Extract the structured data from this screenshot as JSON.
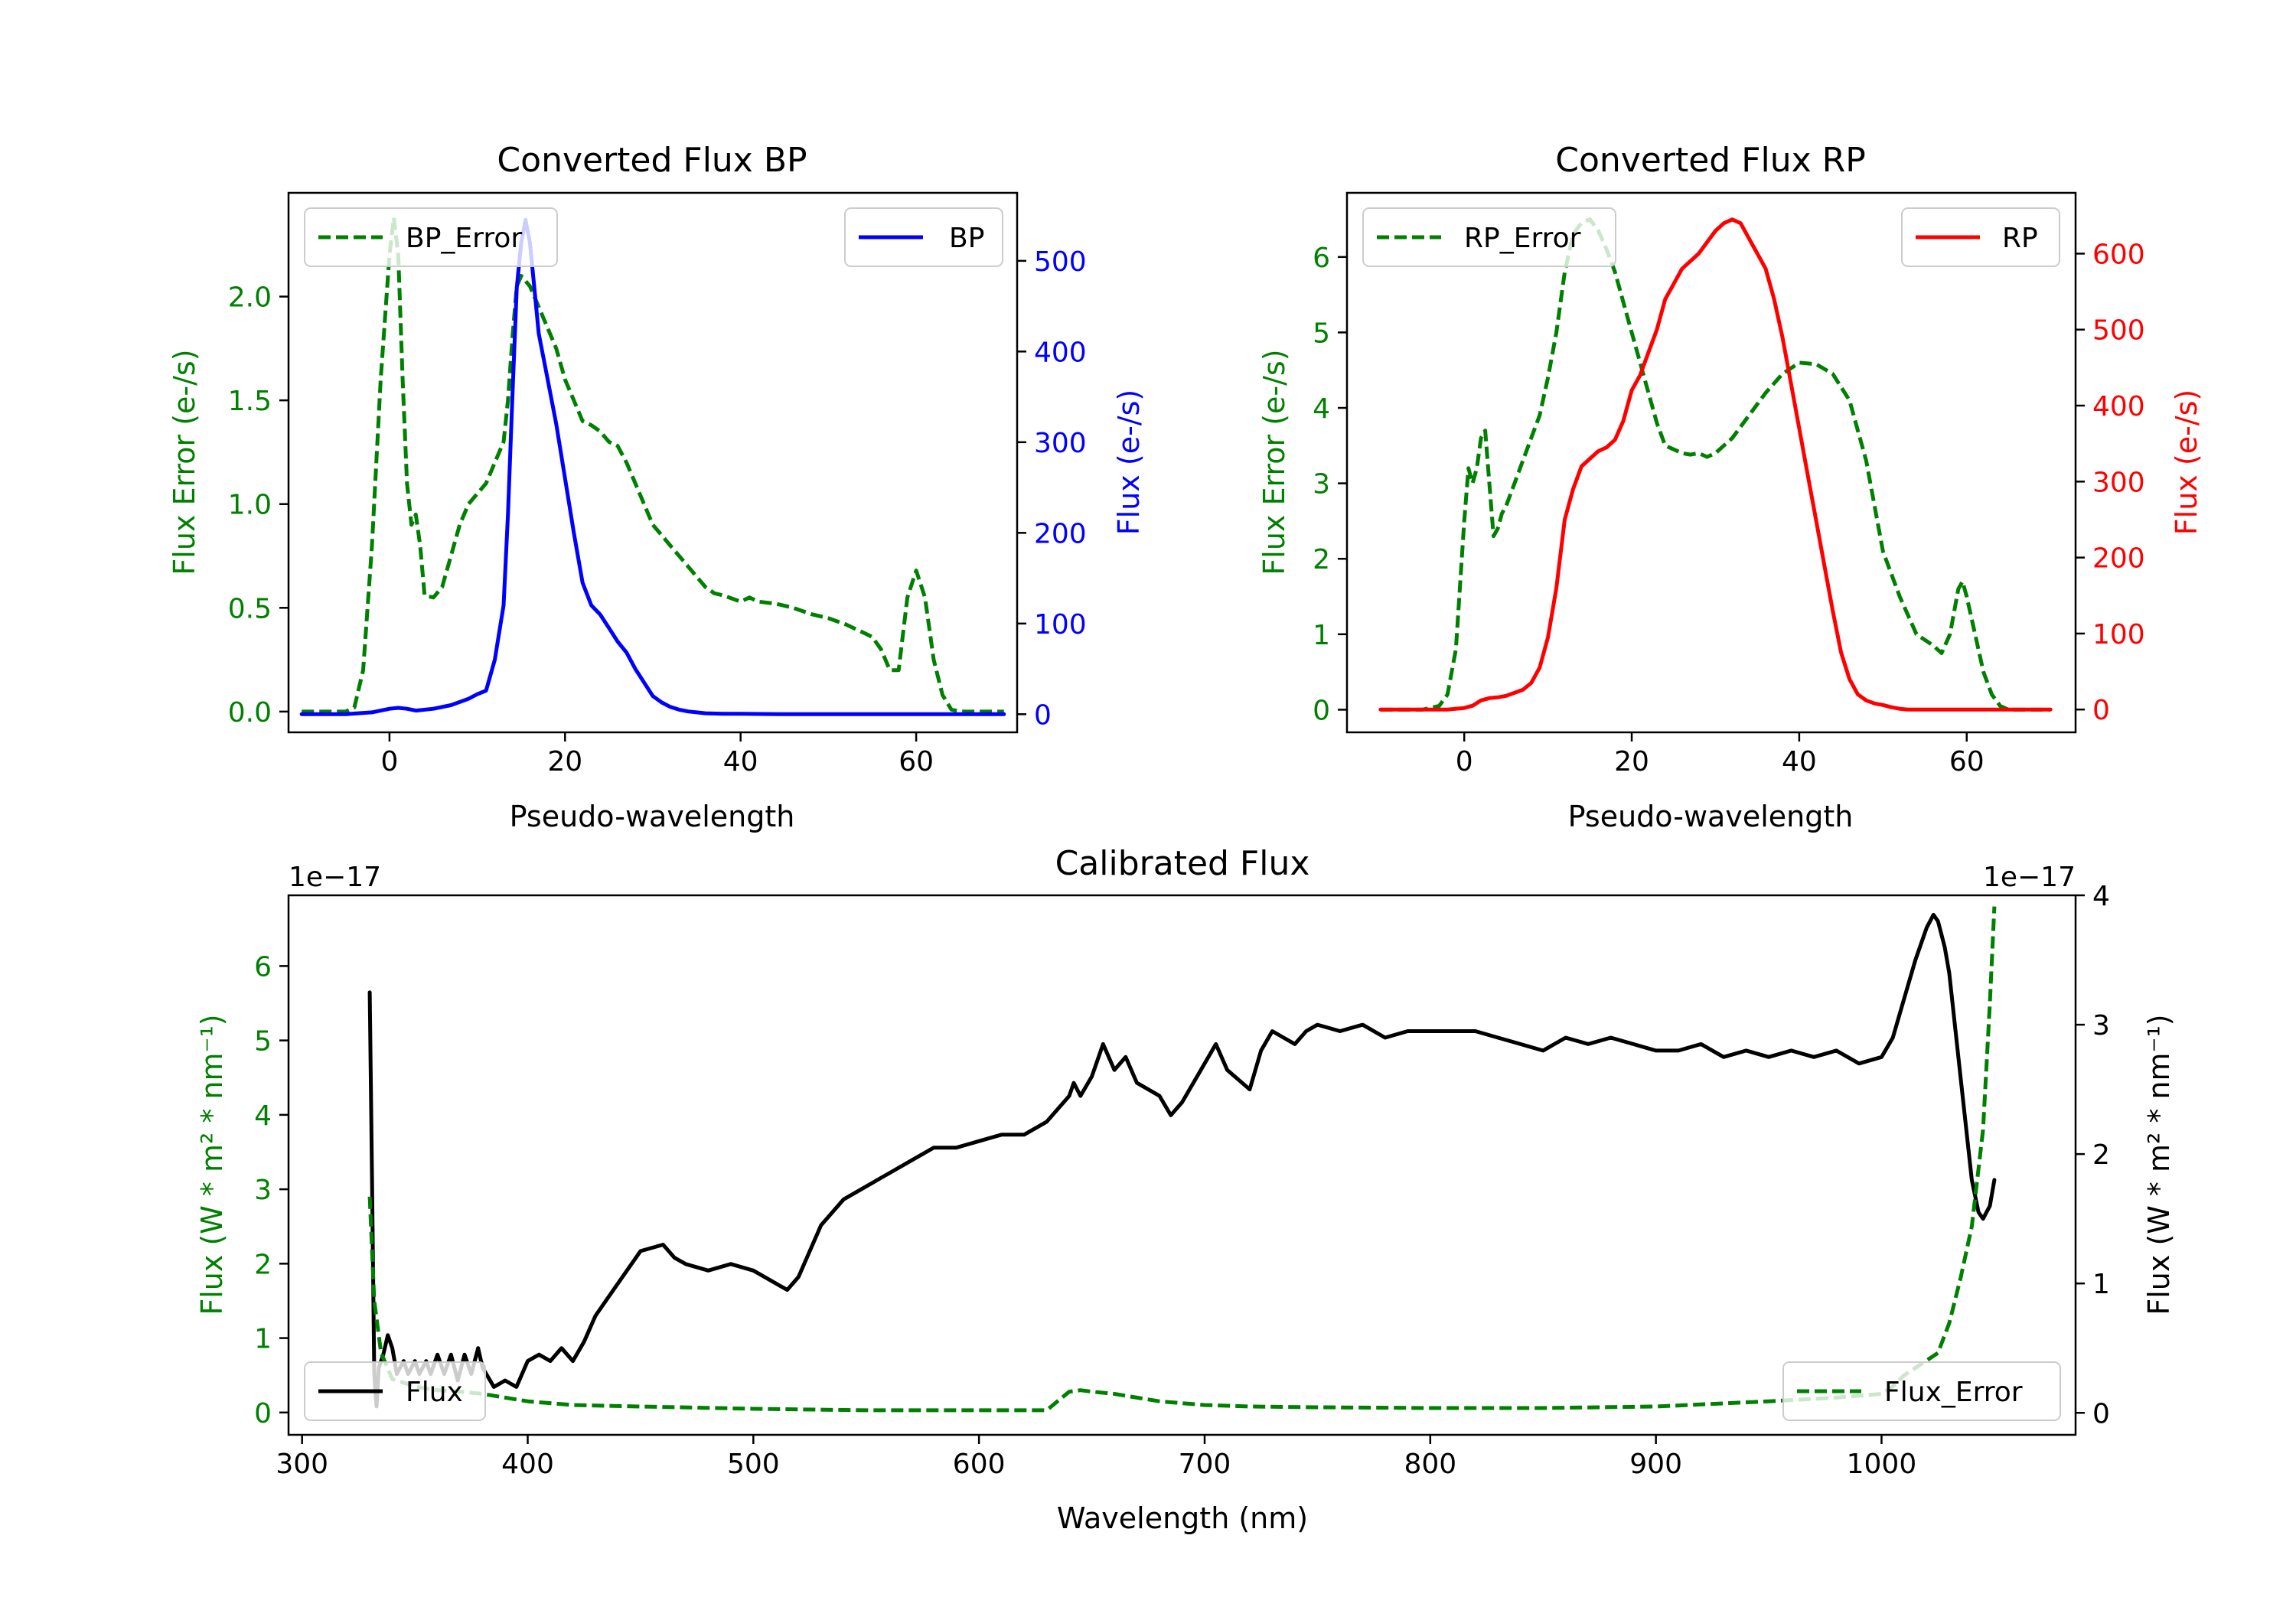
{
  "chart_data": [
    {
      "id": "bp",
      "type": "line",
      "title": "Converted Flux BP",
      "xlabel": "Pseudo-wavelength",
      "ylabel_left": "Flux Error (e-/s)",
      "ylabel_right": "Flux (e-/s)",
      "xlim": [
        -11.5,
        71.5
      ],
      "ylim_left": [
        -0.1,
        2.5
      ],
      "ylim_right": [
        -20,
        575
      ],
      "xticks": [
        "0",
        "20",
        "40",
        "60"
      ],
      "yticks_left": [
        "0.0",
        "0.5",
        "1.0",
        "1.5",
        "2.0"
      ],
      "yticks_right": [
        "0",
        "100",
        "200",
        "300",
        "400",
        "500"
      ],
      "colors": {
        "left": "#008000",
        "right": "#0000ff"
      },
      "series": [
        {
          "name": "BP_Error",
          "axis": "left",
          "style": "dashed",
          "x": [
            -10,
            -5,
            -4,
            -3,
            -2,
            -1,
            0,
            0.5,
            1,
            1.5,
            2,
            2.5,
            3,
            3.5,
            4,
            5,
            6,
            7,
            8,
            9,
            10,
            11,
            12,
            13,
            13.5,
            14,
            14.5,
            15,
            16,
            17,
            18,
            19,
            20,
            21,
            22,
            23,
            24,
            25,
            26,
            27,
            28,
            29,
            30,
            31,
            32,
            33,
            34,
            35,
            36,
            37,
            38,
            40,
            41,
            42,
            44,
            46,
            48,
            50,
            52,
            54,
            55,
            56,
            57,
            58,
            59,
            60,
            61,
            62,
            63,
            64,
            65,
            66,
            67,
            68,
            69,
            70
          ],
          "y": [
            0,
            0,
            0.02,
            0.2,
            0.8,
            1.6,
            2.2,
            2.38,
            2.2,
            1.6,
            1.1,
            0.9,
            0.95,
            0.8,
            0.56,
            0.55,
            0.6,
            0.75,
            0.9,
            1.0,
            1.05,
            1.1,
            1.2,
            1.3,
            1.5,
            1.8,
            2.05,
            2.1,
            2.05,
            1.95,
            1.85,
            1.75,
            1.6,
            1.5,
            1.4,
            1.38,
            1.35,
            1.3,
            1.28,
            1.2,
            1.1,
            1.0,
            0.9,
            0.85,
            0.8,
            0.75,
            0.7,
            0.65,
            0.6,
            0.57,
            0.56,
            0.53,
            0.55,
            0.53,
            0.52,
            0.5,
            0.47,
            0.45,
            0.42,
            0.38,
            0.36,
            0.3,
            0.2,
            0.2,
            0.55,
            0.68,
            0.55,
            0.25,
            0.08,
            0.01,
            0,
            0,
            0,
            0,
            0,
            0
          ]
        },
        {
          "name": "BP",
          "axis": "right",
          "style": "solid",
          "x": [
            -10,
            -5,
            -2,
            0,
            1,
            2,
            3,
            5,
            7,
            9,
            10,
            11,
            12,
            13,
            13.5,
            14,
            14.5,
            15,
            15.5,
            16,
            16.5,
            17,
            18,
            19,
            20,
            21,
            22,
            23,
            24,
            25,
            26,
            27,
            28,
            29,
            30,
            31,
            32,
            33,
            34,
            35,
            36,
            38,
            40,
            45,
            50,
            55,
            60,
            65,
            70
          ],
          "y": [
            0,
            0,
            2,
            6,
            7,
            6,
            4,
            6,
            10,
            17,
            22,
            26,
            60,
            120,
            220,
            350,
            470,
            520,
            545,
            520,
            470,
            420,
            370,
            320,
            260,
            200,
            145,
            120,
            110,
            95,
            80,
            68,
            50,
            35,
            20,
            13,
            8,
            5,
            3,
            2,
            1,
            0.5,
            0.5,
            0,
            0,
            0,
            0,
            0,
            0
          ]
        }
      ],
      "legends": [
        {
          "label": "BP_Error",
          "position": "upper left"
        },
        {
          "label": "BP",
          "position": "upper right"
        }
      ]
    },
    {
      "id": "rp",
      "type": "line",
      "title": "Converted Flux RP",
      "xlabel": "Pseudo-wavelength",
      "ylabel_left": "Flux Error (e-/s)",
      "ylabel_right": "Flux (e-/s)",
      "xlim": [
        -14,
        73
      ],
      "ylim_left": [
        -0.3,
        6.85
      ],
      "ylim_right": [
        -30,
        680
      ],
      "xticks": [
        "0",
        "20",
        "40",
        "60"
      ],
      "yticks_left": [
        "0",
        "1",
        "2",
        "3",
        "4",
        "5",
        "6"
      ],
      "yticks_right": [
        "0",
        "100",
        "200",
        "300",
        "400",
        "500",
        "600"
      ],
      "colors": {
        "left": "#008000",
        "right": "#ff0000"
      },
      "series": [
        {
          "name": "RP_Error",
          "axis": "right_unused_left",
          "style": "dashed",
          "x": [
            -10,
            -5,
            -3,
            -2,
            -1,
            0,
            0.5,
            1,
            1.5,
            2,
            2.5,
            3,
            3.5,
            4,
            4.5,
            5,
            6,
            7,
            8,
            9,
            10,
            11,
            12,
            13,
            14,
            15,
            16,
            17,
            18,
            19,
            20,
            21,
            22,
            23,
            24,
            25,
            26,
            27,
            28,
            29,
            30,
            31,
            32,
            34,
            36,
            38,
            40,
            42,
            44,
            46,
            48,
            50,
            52,
            54,
            56,
            57,
            58,
            59,
            59.5,
            60,
            61,
            62,
            63,
            64,
            65,
            66,
            68,
            70
          ],
          "y": [
            0,
            0,
            0.05,
            0.2,
            0.8,
            2.5,
            3.2,
            3.0,
            3.2,
            3.6,
            3.7,
            3.0,
            2.3,
            2.4,
            2.6,
            2.7,
            3.0,
            3.3,
            3.6,
            3.9,
            4.4,
            5.0,
            5.8,
            6.3,
            6.45,
            6.5,
            6.35,
            6.1,
            5.8,
            5.4,
            5.0,
            4.6,
            4.2,
            3.8,
            3.5,
            3.45,
            3.4,
            3.38,
            3.4,
            3.35,
            3.4,
            3.5,
            3.6,
            3.9,
            4.2,
            4.45,
            4.6,
            4.58,
            4.45,
            4.1,
            3.3,
            2.1,
            1.5,
            1.0,
            0.85,
            0.75,
            1.0,
            1.6,
            1.7,
            1.5,
            1.0,
            0.5,
            0.2,
            0.05,
            0,
            0,
            0,
            0
          ],
          "axis_key": "left"
        },
        {
          "name": "RP",
          "axis": "right",
          "style": "solid",
          "x": [
            -10,
            -5,
            -2,
            0,
            1,
            2,
            3,
            4,
            5,
            6,
            7,
            8,
            9,
            10,
            11,
            12,
            13,
            14,
            15,
            16,
            17,
            18,
            19,
            20,
            21,
            22,
            23,
            24,
            25,
            26,
            27,
            28,
            29,
            30,
            31,
            32,
            33,
            34,
            35,
            36,
            37,
            38,
            39,
            40,
            41,
            42,
            43,
            44,
            45,
            46,
            47,
            48,
            49,
            50,
            51,
            52,
            53,
            54,
            55,
            56,
            57,
            58,
            59,
            60,
            62,
            64,
            66,
            68,
            70
          ],
          "y": [
            0,
            0,
            0,
            2,
            5,
            12,
            15,
            16,
            18,
            22,
            26,
            35,
            55,
            95,
            160,
            250,
            290,
            320,
            330,
            340,
            345,
            355,
            380,
            420,
            440,
            470,
            500,
            540,
            560,
            580,
            590,
            600,
            615,
            630,
            640,
            645,
            640,
            620,
            600,
            580,
            540,
            490,
            430,
            370,
            310,
            250,
            190,
            130,
            75,
            40,
            20,
            12,
            8,
            6,
            3,
            1,
            0,
            0,
            0,
            0,
            0,
            0,
            0,
            0,
            0,
            0,
            0,
            0,
            0
          ]
        }
      ],
      "legends": [
        {
          "label": "RP_Error",
          "position": "upper left"
        },
        {
          "label": "RP",
          "position": "upper right"
        }
      ]
    },
    {
      "id": "cal",
      "type": "line",
      "title": "Calibrated Flux",
      "xlabel": "Wavelength (nm)",
      "ylabel_left": "Flux (W * m² * nm⁻¹)",
      "ylabel_right": "Flux (W * m² * nm⁻¹)",
      "offset_left": "1e−17",
      "offset_right": "1e−17",
      "xlim": [
        294,
        1086
      ],
      "ylim_left": [
        -0.3,
        6.95
      ],
      "ylim_right": [
        -0.17,
        4.0
      ],
      "xticks": [
        "300",
        "400",
        "500",
        "600",
        "700",
        "800",
        "900",
        "1000"
      ],
      "yticks_left": [
        "0",
        "1",
        "2",
        "3",
        "4",
        "5",
        "6"
      ],
      "yticks_right": [
        "0",
        "1",
        "2",
        "3",
        "4"
      ],
      "colors": {
        "left": "#008000",
        "right": "#000000"
      },
      "series": [
        {
          "name": "Flux",
          "axis": "right",
          "style": "solid",
          "x": [
            330,
            331,
            332,
            333,
            334,
            336,
            338,
            340,
            342,
            345,
            347,
            350,
            352,
            355,
            357,
            360,
            363,
            366,
            369,
            372,
            375,
            378,
            380,
            385,
            390,
            395,
            400,
            405,
            410,
            415,
            420,
            425,
            430,
            440,
            450,
            460,
            465,
            470,
            480,
            490,
            500,
            510,
            515,
            520,
            530,
            540,
            550,
            560,
            570,
            580,
            590,
            600,
            610,
            620,
            630,
            640,
            642,
            645,
            650,
            655,
            660,
            665,
            670,
            680,
            685,
            690,
            700,
            705,
            710,
            720,
            725,
            730,
            735,
            740,
            745,
            750,
            760,
            770,
            780,
            790,
            800,
            810,
            820,
            830,
            840,
            850,
            860,
            870,
            880,
            890,
            900,
            910,
            920,
            930,
            940,
            950,
            960,
            970,
            980,
            990,
            1000,
            1005,
            1010,
            1015,
            1020,
            1023,
            1025,
            1028,
            1030,
            1035,
            1040,
            1043,
            1045,
            1048,
            1050
          ],
          "y": [
            3.25,
            1.8,
            0.3,
            0.05,
            0.35,
            0.45,
            0.6,
            0.5,
            0.3,
            0.4,
            0.3,
            0.4,
            0.3,
            0.4,
            0.3,
            0.45,
            0.3,
            0.45,
            0.25,
            0.45,
            0.3,
            0.5,
            0.35,
            0.2,
            0.25,
            0.2,
            0.4,
            0.45,
            0.4,
            0.5,
            0.4,
            0.55,
            0.75,
            1.0,
            1.25,
            1.3,
            1.2,
            1.15,
            1.1,
            1.15,
            1.1,
            1.0,
            0.95,
            1.05,
            1.45,
            1.65,
            1.75,
            1.85,
            1.95,
            2.05,
            2.05,
            2.1,
            2.15,
            2.15,
            2.25,
            2.45,
            2.55,
            2.45,
            2.6,
            2.85,
            2.65,
            2.75,
            2.55,
            2.45,
            2.3,
            2.4,
            2.7,
            2.85,
            2.65,
            2.5,
            2.8,
            2.95,
            2.9,
            2.85,
            2.95,
            3.0,
            2.95,
            3.0,
            2.9,
            2.95,
            2.95,
            2.95,
            2.95,
            2.9,
            2.85,
            2.8,
            2.9,
            2.85,
            2.9,
            2.85,
            2.8,
            2.8,
            2.85,
            2.75,
            2.8,
            2.75,
            2.8,
            2.75,
            2.8,
            2.7,
            2.75,
            2.9,
            3.2,
            3.5,
            3.75,
            3.85,
            3.8,
            3.6,
            3.4,
            2.6,
            1.8,
            1.55,
            1.5,
            1.6,
            1.8
          ]
        },
        {
          "name": "Flux_Error",
          "axis": "left",
          "style": "dashed",
          "x": [
            330,
            332,
            335,
            340,
            345,
            350,
            355,
            360,
            370,
            380,
            390,
            400,
            420,
            450,
            500,
            550,
            600,
            630,
            640,
            645,
            650,
            660,
            670,
            680,
            700,
            720,
            750,
            800,
            850,
            900,
            950,
            980,
            1000,
            1005,
            1010,
            1015,
            1020,
            1025,
            1030,
            1035,
            1040,
            1045,
            1048,
            1050
          ],
          "y": [
            2.9,
            1.5,
            0.8,
            0.45,
            0.4,
            0.35,
            0.32,
            0.3,
            0.28,
            0.25,
            0.2,
            0.15,
            0.1,
            0.08,
            0.05,
            0.03,
            0.03,
            0.03,
            0.28,
            0.3,
            0.28,
            0.25,
            0.2,
            0.15,
            0.1,
            0.08,
            0.07,
            0.06,
            0.06,
            0.08,
            0.15,
            0.2,
            0.25,
            0.35,
            0.5,
            0.6,
            0.7,
            0.8,
            1.2,
            1.8,
            2.5,
            3.8,
            5.5,
            6.8
          ]
        }
      ],
      "legends": [
        {
          "label": "Flux",
          "position": "lower left"
        },
        {
          "label": "Flux_Error",
          "position": "lower right"
        }
      ]
    }
  ]
}
